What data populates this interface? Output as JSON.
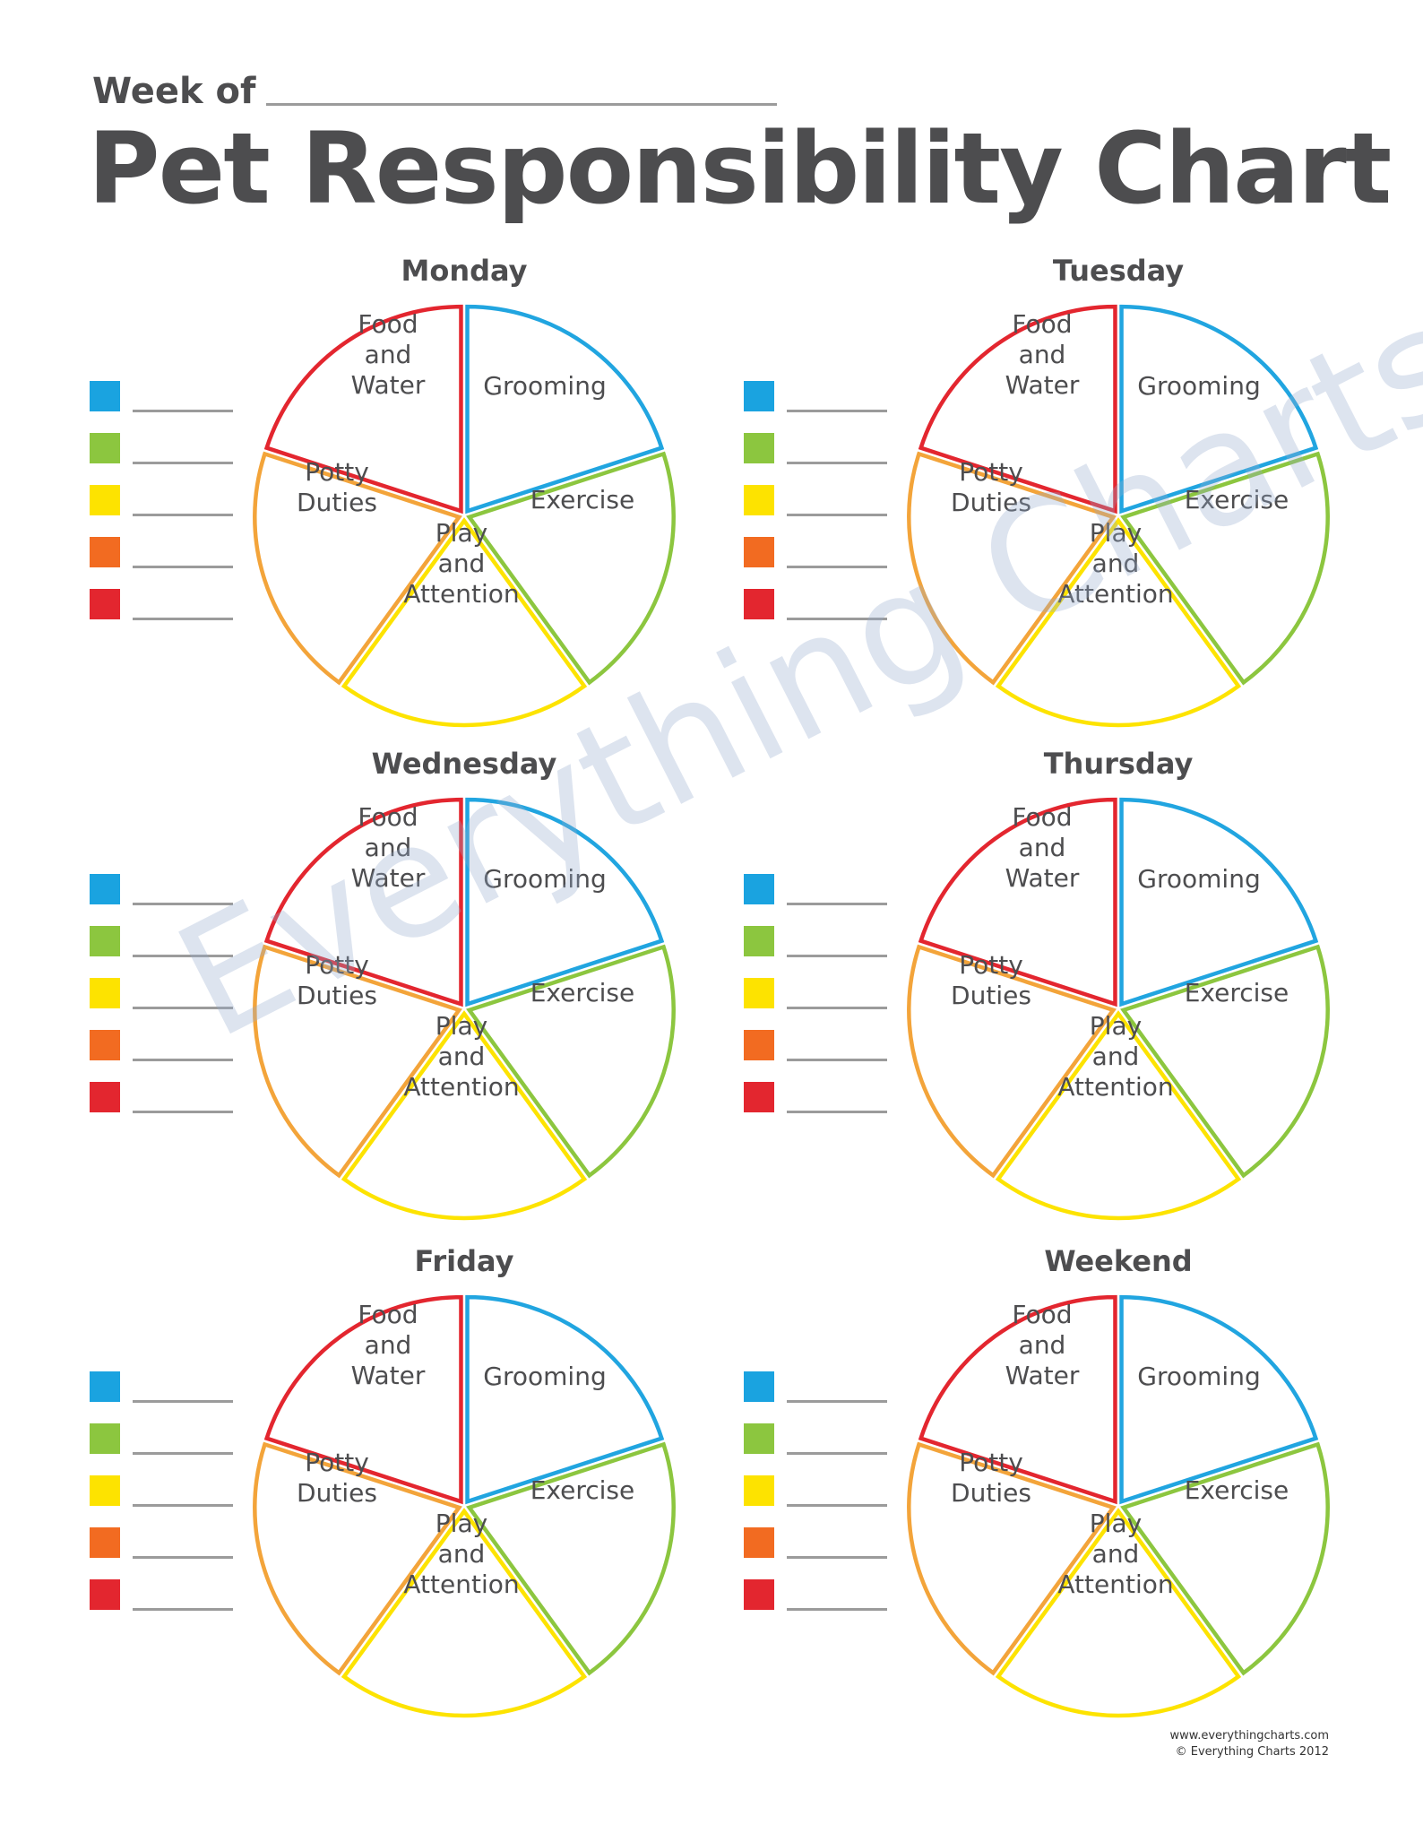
{
  "header": {
    "week_of": "Week of",
    "title": "Pet Responsibility Chart"
  },
  "slices": [
    {
      "label": "Food and Water",
      "color": "#e3262f"
    },
    {
      "label": "Grooming",
      "color": "#21a5e0"
    },
    {
      "label": "Exercise",
      "color": "#8cc63f"
    },
    {
      "label": "Play and Attention",
      "color": "#fde300"
    },
    {
      "label": "Potty Duties",
      "color": "#f3a43a"
    }
  ],
  "legend_colors": [
    "#1aa3e0",
    "#8cc63f",
    "#fde300",
    "#f26b21",
    "#e3262f"
  ],
  "days": [
    {
      "name": "Monday"
    },
    {
      "name": "Tuesday"
    },
    {
      "name": "Wednesday"
    },
    {
      "name": "Thursday"
    },
    {
      "name": "Friday"
    },
    {
      "name": "Weekend"
    }
  ],
  "footer": {
    "url": "www.everythingcharts.com",
    "copyright": "© Everything Charts 2012"
  },
  "watermark": "Everything Charts"
}
